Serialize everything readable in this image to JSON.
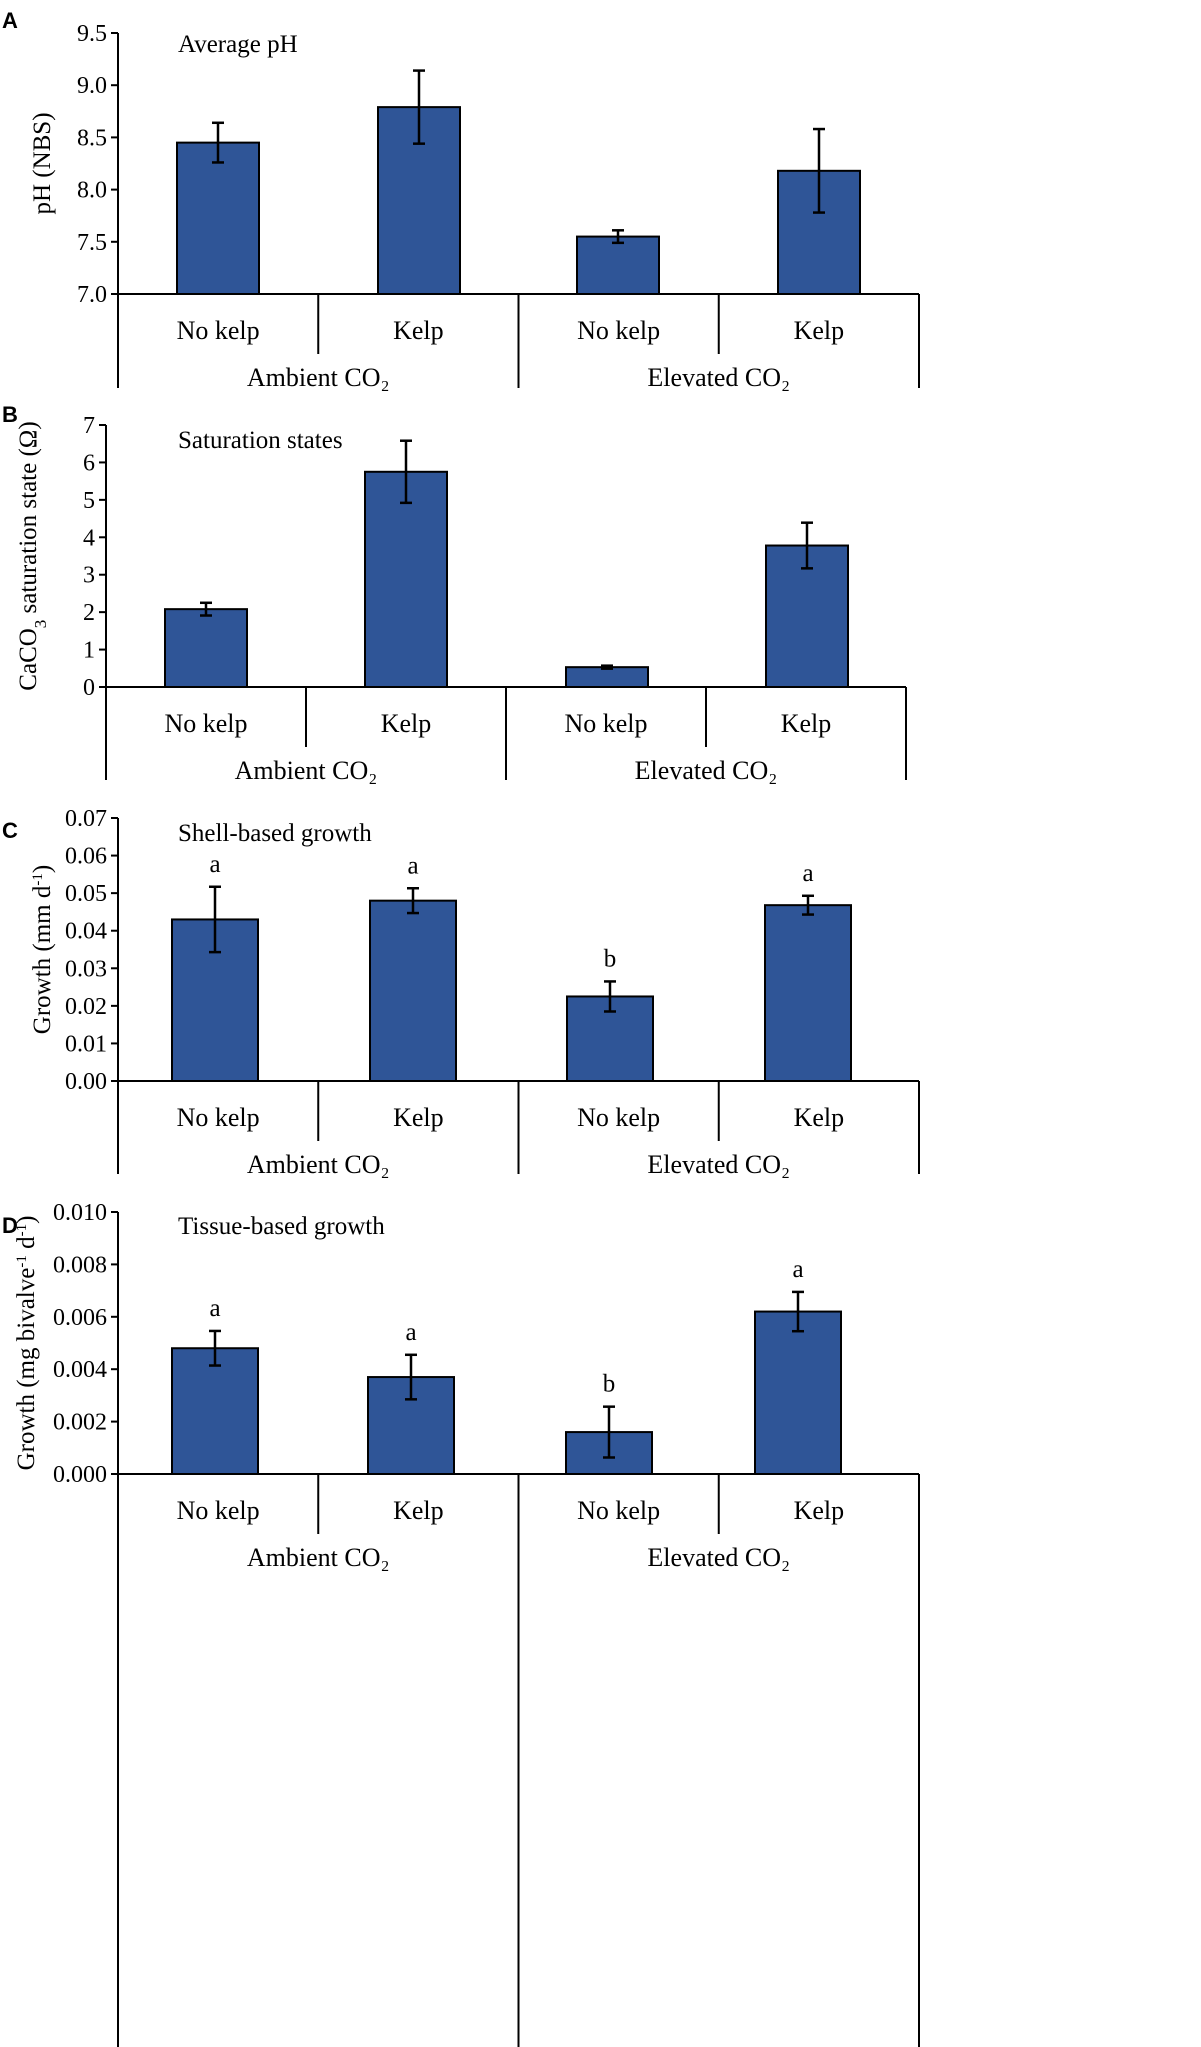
{
  "colors": {
    "bar_fill": "#2F5597",
    "bar_stroke": "#000000",
    "axis": "#000000",
    "background": "#FFFFFF"
  },
  "chart_data": [
    {
      "panel": "A",
      "type": "bar",
      "title": "Average pH",
      "ylabel": "pH (NBS)",
      "ylim": [
        7.0,
        9.5
      ],
      "yticks": [
        "7.0",
        "7.5",
        "8.0",
        "8.5",
        "9.0",
        "9.5"
      ],
      "categories": [
        "No kelp",
        "Kelp",
        "No kelp",
        "Kelp"
      ],
      "groups": [
        "Ambient CO₂",
        "Elevated CO₂"
      ],
      "values": [
        8.45,
        8.79,
        7.55,
        8.18
      ],
      "errors": [
        0.19,
        0.35,
        0.06,
        0.4
      ],
      "letters": [
        "",
        "",
        "",
        ""
      ]
    },
    {
      "panel": "B",
      "type": "bar",
      "title": "Saturation states",
      "ylabel_main": "CaCO",
      "ylabel_sub": "3",
      "ylabel_tail": " saturation state (Ω)",
      "ylim": [
        0,
        7
      ],
      "yticks": [
        "0",
        "1",
        "2",
        "3",
        "4",
        "5",
        "6",
        "7"
      ],
      "categories": [
        "No kelp",
        "Kelp",
        "No kelp",
        "Kelp"
      ],
      "groups": [
        "Ambient CO₂",
        "Elevated CO₂"
      ],
      "values": [
        2.08,
        5.75,
        0.53,
        3.78
      ],
      "errors": [
        0.17,
        0.83,
        0.04,
        0.61
      ],
      "letters": [
        "",
        "",
        "",
        ""
      ]
    },
    {
      "panel": "C",
      "type": "bar",
      "title": "Shell-based growth",
      "ylabel_main": "Growth (mm d",
      "ylabel_sup": "-1",
      "ylabel_tail": ")",
      "ylim": [
        0,
        0.07
      ],
      "yticks": [
        "0.00",
        "0.01",
        "0.02",
        "0.03",
        "0.04",
        "0.05",
        "0.06",
        "0.07"
      ],
      "categories": [
        "No kelp",
        "Kelp",
        "No kelp",
        "Kelp"
      ],
      "groups": [
        "Ambient CO₂",
        "Elevated CO₂"
      ],
      "values": [
        0.043,
        0.048,
        0.0225,
        0.0468
      ],
      "errors": [
        0.0087,
        0.0033,
        0.004,
        0.0025
      ],
      "letters": [
        "a",
        "a",
        "b",
        "a"
      ]
    },
    {
      "panel": "D",
      "type": "bar",
      "title": "Tissue-based growth",
      "ylabel_main": "Growth (mg bivalve",
      "ylabel_sup1": "-1",
      "ylabel_mid": " d",
      "ylabel_sup2": "-1",
      "ylabel_tail": ")",
      "ylim": [
        0,
        0.01
      ],
      "yticks": [
        "0.000",
        "0.002",
        "0.004",
        "0.006",
        "0.008",
        "0.010"
      ],
      "categories": [
        "No kelp",
        "Kelp",
        "No kelp",
        "Kelp"
      ],
      "groups": [
        "Ambient CO₂",
        "Elevated CO₂"
      ],
      "values": [
        0.0048,
        0.0037,
        0.0016,
        0.0062
      ],
      "errors": [
        0.00066,
        0.00085,
        0.00097,
        0.00075
      ],
      "letters": [
        "a",
        "a",
        "b",
        "a"
      ]
    }
  ]
}
